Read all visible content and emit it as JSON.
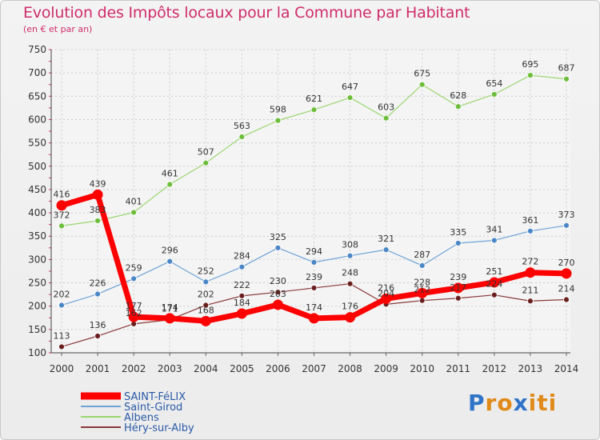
{
  "header": {
    "title": "Evolution des Impôts locaux pour la Commune par Habitant",
    "subtitle": "(en € et par an)"
  },
  "logo": {
    "letters": [
      "P",
      "r",
      "o",
      "x",
      "i",
      "t",
      "i"
    ],
    "colors": [
      "#2f74c8",
      "#e08a1a",
      "#e08a1a",
      "#2f74c8",
      "#e08a1a",
      "#e08a1a",
      "#e08a1a"
    ]
  },
  "chart_data": {
    "type": "line",
    "title": "Evolution des Impôts locaux pour la Commune par Habitant",
    "subtitle": "(en € et par an)",
    "xlabel": "",
    "ylabel": "",
    "ylim": [
      100,
      750
    ],
    "yticks": [
      100,
      150,
      200,
      250,
      300,
      350,
      400,
      450,
      500,
      550,
      600,
      650,
      700,
      750
    ],
    "grid": true,
    "legend": "bottom-left",
    "x": [
      "2000",
      "2001",
      "2002",
      "2003",
      "2004",
      "2005",
      "2006",
      "2007",
      "2008",
      "2009",
      "2010",
      "2011",
      "2012",
      "2013",
      "2014"
    ],
    "series": [
      {
        "name": "Albens",
        "color": "#9ad66e",
        "marker": "#6dbd3a",
        "width": 1.2,
        "values": [
          372,
          383,
          401,
          461,
          507,
          563,
          598,
          621,
          647,
          603,
          675,
          628,
          654,
          695,
          687
        ]
      },
      {
        "name": "Saint-Girod",
        "color": "#6fa3d6",
        "marker": "#4a86c6",
        "width": 1.2,
        "values": [
          202,
          226,
          259,
          296,
          252,
          284,
          325,
          294,
          308,
          321,
          287,
          335,
          341,
          361,
          373
        ]
      },
      {
        "name": "Héry-sur-Alby",
        "color": "#8a3a3a",
        "marker": "#6a1f1f",
        "width": 1.2,
        "values": [
          113,
          136,
          162,
          171,
          202,
          222,
          230,
          239,
          248,
          204,
          212,
          217,
          224,
          211,
          214
        ]
      },
      {
        "name": "SAINT-FéLIX",
        "color": "#ff0000",
        "marker": "#ff0000",
        "width": 7,
        "values": [
          416,
          439,
          177,
          174,
          168,
          184,
          203,
          174,
          176,
          216,
          228,
          239,
          251,
          272,
          270
        ]
      }
    ],
    "labels": [
      {
        "series": "Albens",
        "text": [
          "372",
          "383",
          "401",
          "461",
          "507",
          "563",
          "598",
          "621",
          "647",
          "603",
          "675",
          "628",
          "654",
          "695",
          "687"
        ]
      },
      {
        "series": "Saint-Girod",
        "text": [
          "202",
          "226",
          "259",
          "296",
          "252",
          "284",
          "325",
          "294",
          "308",
          "321",
          "287",
          "335",
          "341",
          "361",
          "373"
        ]
      },
      {
        "series": "Héry-sur-Alby",
        "text": [
          "113",
          "136",
          "162",
          "171",
          "202",
          "222",
          "230",
          "239",
          "248",
          "204",
          "212",
          "217",
          "224",
          "211",
          "214"
        ]
      },
      {
        "series": "SAINT-FéLIX",
        "text": [
          "416",
          "439",
          "177",
          "174",
          "168",
          "184",
          "203",
          "174",
          "176",
          "216",
          "228",
          "239",
          "251",
          "272",
          "270"
        ]
      }
    ],
    "legend_order": [
      "SAINT-FéLIX",
      "Saint-Girod",
      "Albens",
      "Héry-sur-Alby"
    ]
  }
}
